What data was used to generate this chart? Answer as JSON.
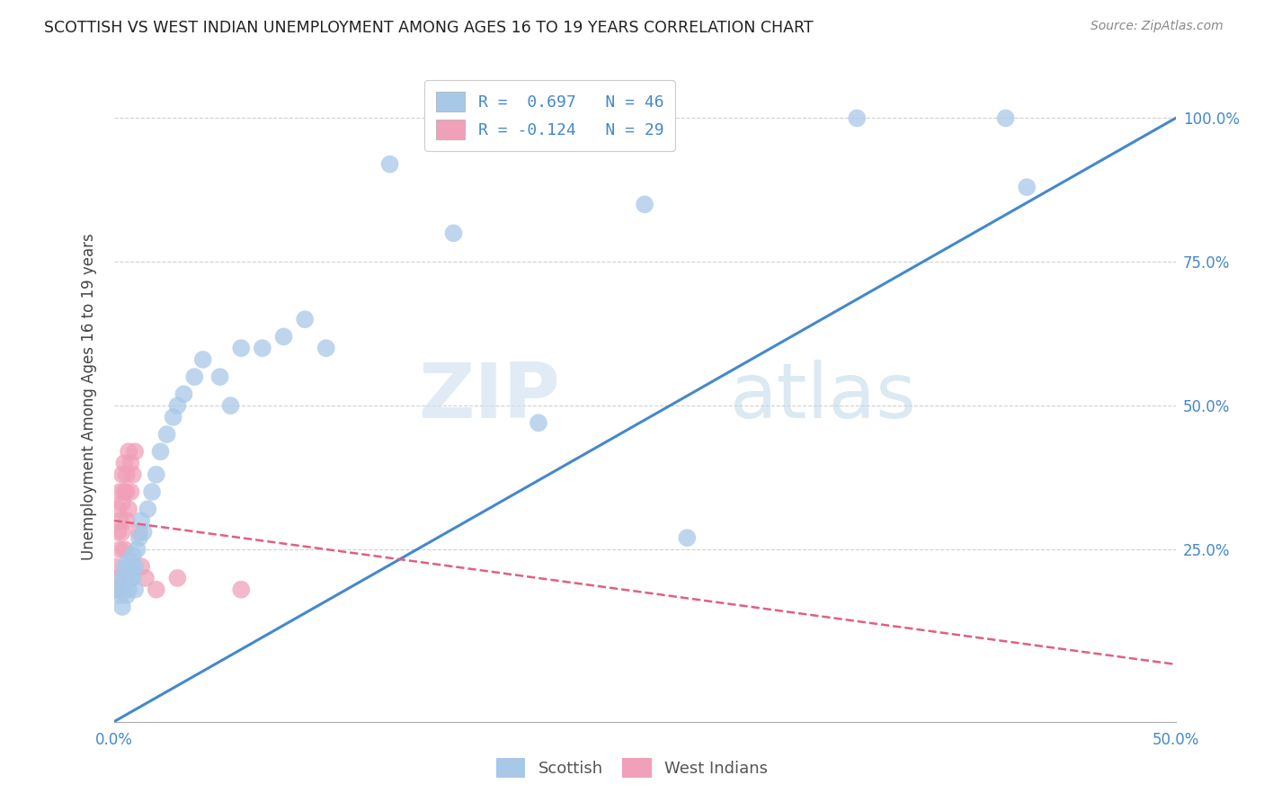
{
  "title": "SCOTTISH VS WEST INDIAN UNEMPLOYMENT AMONG AGES 16 TO 19 YEARS CORRELATION CHART",
  "source": "Source: ZipAtlas.com",
  "ylabel": "Unemployment Among Ages 16 to 19 years",
  "scottish_color": "#a8c8e8",
  "scottish_line_color": "#4488cc",
  "westindian_color": "#f0a0b8",
  "westindian_line_color": "#e06080",
  "background_color": "#ffffff",
  "grid_color": "#cccccc",
  "scottish_x": [
    0.002,
    0.003,
    0.004,
    0.004,
    0.005,
    0.005,
    0.006,
    0.006,
    0.007,
    0.007,
    0.008,
    0.008,
    0.009,
    0.009,
    0.01,
    0.01,
    0.011,
    0.012,
    0.013,
    0.014,
    0.016,
    0.018,
    0.02,
    0.022,
    0.025,
    0.028,
    0.03,
    0.033,
    0.038,
    0.042,
    0.05,
    0.055,
    0.06,
    0.07,
    0.08,
    0.09,
    0.1,
    0.13,
    0.16,
    0.2,
    0.22,
    0.25,
    0.27,
    0.35,
    0.42,
    0.43
  ],
  "scottish_y": [
    0.18,
    0.17,
    0.2,
    0.15,
    0.22,
    0.19,
    0.2,
    0.17,
    0.23,
    0.18,
    0.2,
    0.22,
    0.24,
    0.2,
    0.22,
    0.18,
    0.25,
    0.27,
    0.3,
    0.28,
    0.32,
    0.35,
    0.38,
    0.42,
    0.45,
    0.48,
    0.5,
    0.52,
    0.55,
    0.58,
    0.55,
    0.5,
    0.6,
    0.6,
    0.62,
    0.65,
    0.6,
    0.92,
    0.8,
    0.47,
    1.0,
    0.85,
    0.27,
    1.0,
    1.0,
    0.88
  ],
  "westindian_x": [
    0.001,
    0.001,
    0.002,
    0.002,
    0.002,
    0.003,
    0.003,
    0.003,
    0.004,
    0.004,
    0.004,
    0.005,
    0.005,
    0.005,
    0.006,
    0.006,
    0.006,
    0.007,
    0.007,
    0.008,
    0.008,
    0.009,
    0.01,
    0.012,
    0.013,
    0.015,
    0.02,
    0.03,
    0.06
  ],
  "westindian_y": [
    0.22,
    0.18,
    0.28,
    0.32,
    0.2,
    0.3,
    0.35,
    0.25,
    0.33,
    0.38,
    0.28,
    0.35,
    0.4,
    0.25,
    0.38,
    0.35,
    0.3,
    0.42,
    0.32,
    0.4,
    0.35,
    0.38,
    0.42,
    0.28,
    0.22,
    0.2,
    0.18,
    0.2,
    0.18
  ],
  "xlim": [
    0.0,
    0.5
  ],
  "ylim_min": -0.05,
  "ylim_max": 1.08,
  "xticks": [
    0.0,
    0.1,
    0.2,
    0.3,
    0.4,
    0.5
  ],
  "xtick_labels": [
    "0.0%",
    "",
    "",
    "",
    "",
    "50.0%"
  ],
  "yticks": [
    0.0,
    0.25,
    0.5,
    0.75,
    1.0
  ],
  "ytick_labels_right": [
    "25.0%",
    "50.0%",
    "75.0%",
    "100.0%"
  ],
  "legend_line1": "R =  0.697   N = 46",
  "legend_line2": "R = -0.124   N = 29",
  "legend_text_color": "#4488cc",
  "watermark_zip": "ZIP",
  "watermark_atlas": "atlas",
  "marker_size": 200
}
